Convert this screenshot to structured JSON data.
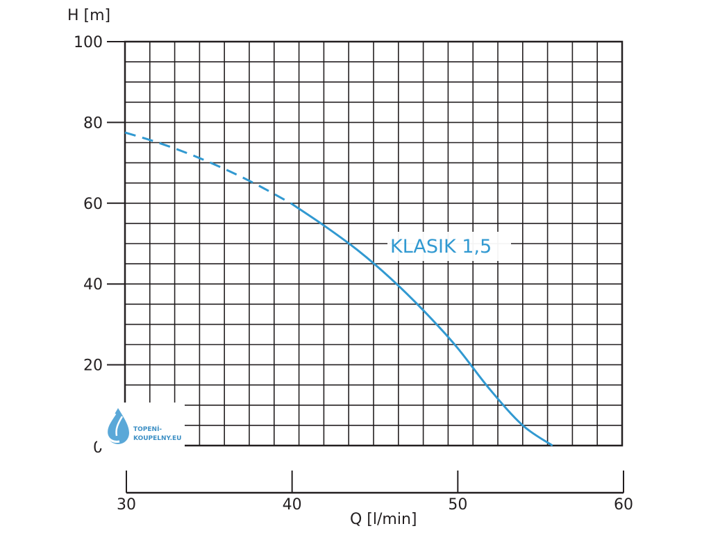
{
  "chart_data": {
    "type": "line",
    "ylabel": "H [m]",
    "xlabel": "Q [l/min]",
    "ylim": [
      0,
      100
    ],
    "xlim": [
      30,
      60
    ],
    "yticks": [
      "100",
      "80",
      "60",
      "40",
      "20",
      "0"
    ],
    "xticks": [
      "30",
      "40",
      "50",
      "60"
    ],
    "grid": true,
    "series": [
      {
        "name": "KLASIK 1,5",
        "color": "#3199d1",
        "dashed_until_x": 40,
        "x": [
          30,
          32,
          34,
          36,
          38,
          40,
          42,
          44,
          46,
          48,
          50,
          52,
          54,
          55.8
        ],
        "y": [
          77.5,
          75,
          72,
          68.5,
          64.5,
          60,
          54.5,
          48.5,
          41.5,
          33.5,
          24.5,
          14,
          5,
          0
        ]
      }
    ]
  },
  "logo": {
    "line1": "TOPENÍ-",
    "line2": "KOUPELNY.EU"
  },
  "colors": {
    "grid": "#231f20",
    "curve": "#3199d1"
  }
}
